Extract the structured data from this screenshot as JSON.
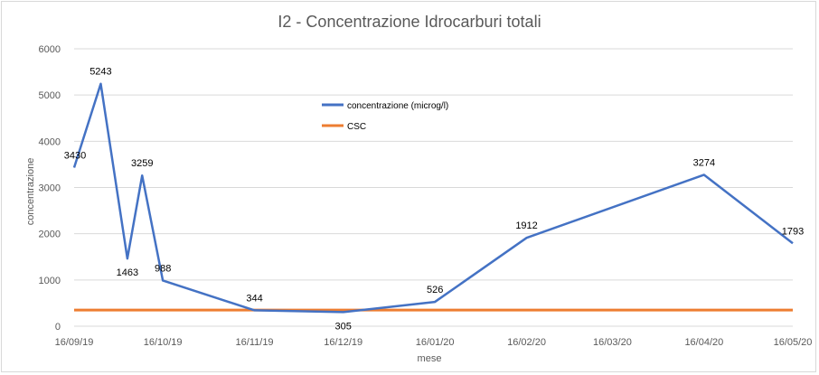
{
  "chart_data": {
    "type": "line",
    "title": "I2 - Concentrazione Idrocarburi totali",
    "xlabel": "mese",
    "ylabel": "concentrazione",
    "ylim": [
      0,
      6000
    ],
    "yticks": [
      "0",
      "1000",
      "2000",
      "3000",
      "4000",
      "5000",
      "6000"
    ],
    "xlim": [
      "2019-09-16",
      "2020-05-16"
    ],
    "xticks": [
      {
        "date": "2019-09-16",
        "label": "16/09/19"
      },
      {
        "date": "2019-10-16",
        "label": "16/10/19"
      },
      {
        "date": "2019-11-16",
        "label": "16/11/19"
      },
      {
        "date": "2019-12-16",
        "label": "16/12/19"
      },
      {
        "date": "2020-01-16",
        "label": "16/01/20"
      },
      {
        "date": "2020-02-16",
        "label": "16/02/20"
      },
      {
        "date": "2020-03-16",
        "label": "16/03/20"
      },
      {
        "date": "2020-04-16",
        "label": "16/04/20"
      },
      {
        "date": "2020-05-16",
        "label": "16/05/20"
      }
    ],
    "grid": true,
    "legend_position": "top-center",
    "series": [
      {
        "name": "concentrazione (microg/l)",
        "color": "#4472c4",
        "points": [
          {
            "x": "2019-09-16",
            "y": 3430,
            "label": "3430"
          },
          {
            "x": "2019-09-25",
            "y": 5243,
            "label": "5243"
          },
          {
            "x": "2019-10-04",
            "y": 1463,
            "label": "1463"
          },
          {
            "x": "2019-10-09",
            "y": 3259,
            "label": "3259"
          },
          {
            "x": "2019-10-16",
            "y": 988,
            "label": "988"
          },
          {
            "x": "2019-11-16",
            "y": 344,
            "label": "344"
          },
          {
            "x": "2019-12-16",
            "y": 305,
            "label": "305"
          },
          {
            "x": "2020-01-16",
            "y": 526,
            "label": "526"
          },
          {
            "x": "2020-02-16",
            "y": 1912,
            "label": "1912"
          },
          {
            "x": "2020-04-16",
            "y": 3274,
            "label": "3274"
          },
          {
            "x": "2020-05-16",
            "y": 1793,
            "label": "1793"
          }
        ]
      },
      {
        "name": "CSC",
        "color": "#ed7d31",
        "points": [
          {
            "x": "2019-09-16",
            "y": 350
          },
          {
            "x": "2020-05-16",
            "y": 350
          }
        ]
      }
    ]
  }
}
